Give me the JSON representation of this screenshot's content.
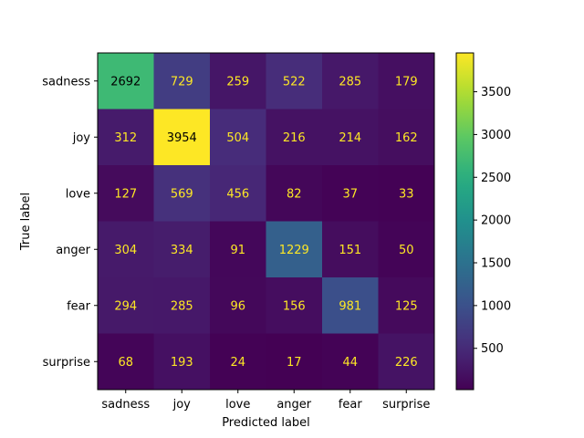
{
  "chart_data": {
    "type": "heatmap",
    "title": "",
    "xlabel": "Predicted label",
    "ylabel": "True label",
    "x_categories": [
      "sadness",
      "joy",
      "love",
      "anger",
      "fear",
      "surprise"
    ],
    "y_categories": [
      "sadness",
      "joy",
      "love",
      "anger",
      "fear",
      "surprise"
    ],
    "values": [
      [
        2692,
        729,
        259,
        522,
        285,
        179
      ],
      [
        312,
        3954,
        504,
        216,
        214,
        162
      ],
      [
        127,
        569,
        456,
        82,
        37,
        33
      ],
      [
        304,
        334,
        91,
        1229,
        151,
        50
      ],
      [
        294,
        285,
        96,
        156,
        981,
        125
      ],
      [
        68,
        193,
        24,
        17,
        44,
        226
      ]
    ],
    "colormap": "viridis",
    "color_range": [
      17,
      3954
    ],
    "colorbar_ticks": [
      500,
      1000,
      1500,
      2000,
      2500,
      3000,
      3500
    ],
    "text_color_on_dark": "#fde725",
    "text_color_on_light": "#000000"
  }
}
